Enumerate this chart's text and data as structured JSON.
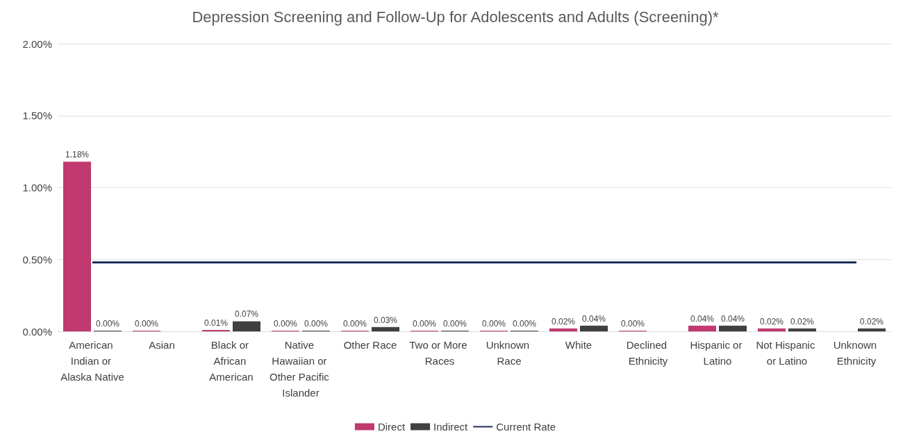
{
  "chart_data": {
    "type": "bar",
    "title": "Depression Screening and Follow-Up for Adolescents and Adults (Screening)*",
    "categories": [
      "American Indian or Alaska Native",
      "Asian",
      "Black or African American",
      "Native Hawaiian or Other Pacific Islander",
      "Other Race",
      "Two or More Races",
      "Unknown Race",
      "White",
      "Declined Ethnicity",
      "Hispanic or Latino",
      "Not Hispanic or Latino",
      "Unknown Ethnicity"
    ],
    "series": [
      {
        "name": "Direct",
        "color": "#c0396f",
        "values": [
          1.18,
          0,
          0.01,
          0,
          0,
          0,
          0,
          0.02,
          0,
          0.04,
          0.02,
          null
        ],
        "value_labels": [
          "1.18%",
          "0.00%",
          "0.01%",
          "0.00%",
          "0.00%",
          "0.00%",
          "0.00%",
          "0.02%",
          "0.00%",
          "0.04%",
          "0.02%",
          null
        ]
      },
      {
        "name": "Indirect",
        "color": "#404040",
        "values": [
          0,
          null,
          0.07,
          0,
          0.03,
          0,
          0,
          0.04,
          null,
          0.04,
          0.02,
          0.02
        ],
        "value_labels": [
          "0.00%",
          null,
          "0.07%",
          "0.00%",
          "0.03%",
          "0.00%",
          "0.00%",
          "0.04%",
          null,
          "0.04%",
          "0.02%",
          "0.02%"
        ]
      },
      {
        "name": "Current Rate",
        "type": "line",
        "color": "#1f2d5a",
        "values": [
          0.48,
          0.48,
          0.48,
          0.48,
          0.48,
          0.48,
          0.48,
          0.48,
          0.48,
          0.48,
          0.48,
          0.48
        ]
      }
    ],
    "ylim": [
      0,
      2
    ],
    "yticks": [
      {
        "value": 0,
        "label": "0.00%"
      },
      {
        "value": 0.5,
        "label": "0.50%"
      },
      {
        "value": 1,
        "label": "1.00%"
      },
      {
        "value": 1.5,
        "label": "1.50%"
      },
      {
        "value": 2,
        "label": "2.00%"
      }
    ],
    "grid": "y",
    "legend": "bottom",
    "marker": "none"
  }
}
